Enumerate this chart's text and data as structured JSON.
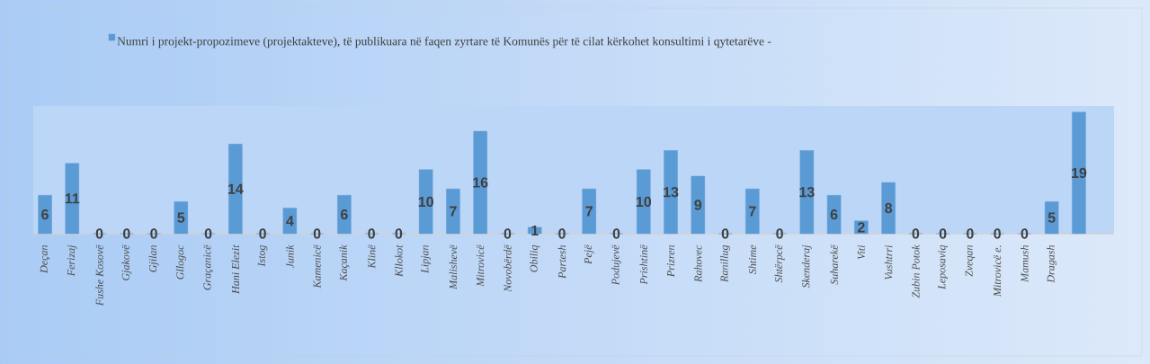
{
  "chart_data": {
    "type": "bar",
    "categories": [
      "Deçan",
      "Ferizaj",
      "Fushe Kosovë",
      "Gjakovë",
      "Gjilan",
      "Gllogoc",
      "Graçanicë",
      "Hani Elezit",
      "Istog",
      "Junik",
      "Kamenicë",
      "Kaçanik",
      "Klinë",
      "Kllokot",
      "Lipjan",
      "Malishevë",
      "Mitrovicë",
      "Novobërdë",
      "Obiliq",
      "Partesh",
      "Pejë",
      "Podujevë",
      "Prishtinë",
      "Prizren",
      "Rahovec",
      "Ranillug",
      "Shtime",
      "Shtërpcë",
      "Skenderaj",
      "Suharekë",
      "Viti",
      "Vushtrri",
      "Zubin Potok",
      "Leposaviq",
      "Zveqan",
      "Mitrovicë e.",
      "Mamush",
      "Dragash",
      null
    ],
    "series": [
      {
        "name": "Numri i projekt-propozimeve (projektakteve), të publikuara në faqen zyrtare të Komunës për të cilat kërkohet konsultimi i qytetarëve -",
        "color": "#5b9bd5",
        "values": [
          6,
          11,
          0,
          0,
          0,
          5,
          0,
          14,
          0,
          4,
          0,
          6,
          0,
          0,
          10,
          7,
          16,
          0,
          1,
          0,
          7,
          0,
          10,
          13,
          9,
          0,
          7,
          0,
          13,
          6,
          2,
          8,
          0,
          0,
          0,
          0,
          0,
          5,
          19
        ]
      }
    ],
    "data_labels": true,
    "legend": "top"
  }
}
